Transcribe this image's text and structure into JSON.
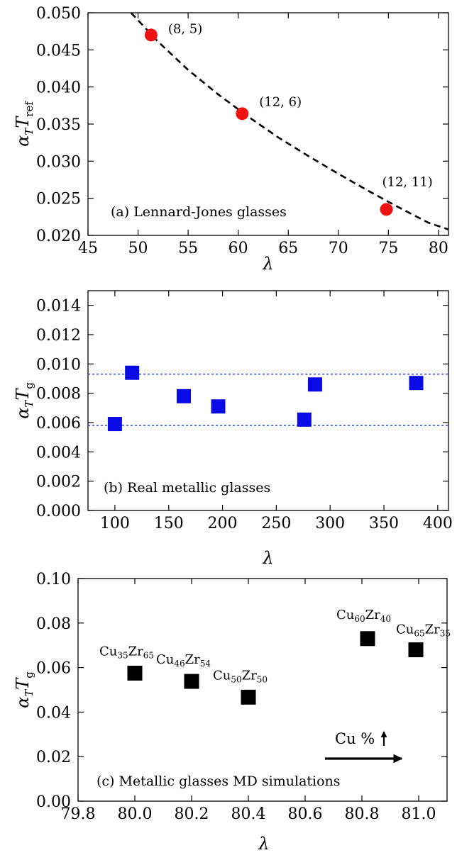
{
  "chart_data": [
    {
      "type": "scatter",
      "panel_label": "(a) Lennard-Jones glasses",
      "xlabel": "λ",
      "ylabel": "α_T T_ref",
      "xlim": [
        45,
        81
      ],
      "ylim": [
        0.02,
        0.05
      ],
      "xticks": [
        "45",
        "50",
        "55",
        "60",
        "65",
        "70",
        "75",
        "80"
      ],
      "yticks": [
        "0.020",
        "0.025",
        "0.030",
        "0.035",
        "0.040",
        "0.045",
        "0.050"
      ],
      "grid": false,
      "marker_color": "#ee1111",
      "points": [
        {
          "x": 51.3,
          "y": 0.047,
          "label": "(8, 5)"
        },
        {
          "x": 60.4,
          "y": 0.0364,
          "label": "(12, 6)"
        },
        {
          "x": 74.8,
          "y": 0.0235,
          "label": "(12, 11)"
        }
      ],
      "fit_curve": {
        "style": "dashed",
        "color": "#000000",
        "x": [
          49.3,
          52,
          55,
          58,
          61,
          64,
          67,
          70,
          73,
          76,
          79,
          81
        ],
        "y": [
          0.05,
          0.0461,
          0.0423,
          0.039,
          0.036,
          0.0332,
          0.0307,
          0.0283,
          0.026,
          0.0238,
          0.0217,
          0.0208
        ]
      }
    },
    {
      "type": "scatter",
      "panel_label": "(b) Real metallic glasses",
      "xlabel": "λ",
      "ylabel": "α_T T_g",
      "xlim": [
        75,
        410
      ],
      "ylim": [
        0.0,
        0.015
      ],
      "xticks": [
        "100",
        "150",
        "200",
        "250",
        "300",
        "350",
        "400"
      ],
      "yticks": [
        "0.000",
        "0.002",
        "0.004",
        "0.006",
        "0.008",
        "0.010",
        "0.012",
        "0.014"
      ],
      "grid": false,
      "marker_color": "#0a0ae6",
      "points": [
        {
          "x": 100,
          "y": 0.0059
        },
        {
          "x": 116,
          "y": 0.0094
        },
        {
          "x": 164,
          "y": 0.0078
        },
        {
          "x": 196,
          "y": 0.0071
        },
        {
          "x": 276,
          "y": 0.0062
        },
        {
          "x": 286,
          "y": 0.0086
        },
        {
          "x": 380,
          "y": 0.0087
        }
      ],
      "reference_lines": [
        {
          "y": 0.0093,
          "style": "dotted",
          "color": "#2e55e6"
        },
        {
          "y": 0.0058,
          "style": "dotted",
          "color": "#2e55e6"
        }
      ]
    },
    {
      "type": "scatter",
      "panel_label": "(c) Metallic glasses MD simulations",
      "xlabel": "λ",
      "ylabel": "α_T T_g",
      "xlim": [
        79.8,
        81.1
      ],
      "ylim": [
        0.0,
        0.1
      ],
      "xticks": [
        "79.8",
        "80.0",
        "80.2",
        "80.4",
        "80.6",
        "80.8",
        "81.0"
      ],
      "yticks": [
        "0.00",
        "0.02",
        "0.04",
        "0.06",
        "0.08",
        "0.10"
      ],
      "grid": false,
      "marker_color": "#000000",
      "points": [
        {
          "x": 80.0,
          "y": 0.0575,
          "label": [
            "Cu",
            "35",
            "Zr",
            "65"
          ]
        },
        {
          "x": 80.2,
          "y": 0.0538,
          "label": [
            "Cu",
            "46",
            "Zr",
            "54"
          ]
        },
        {
          "x": 80.4,
          "y": 0.0467,
          "label": [
            "Cu",
            "50",
            "Zr",
            "50"
          ]
        },
        {
          "x": 80.82,
          "y": 0.073,
          "label": [
            "Cu",
            "60",
            "Zr",
            "40"
          ]
        },
        {
          "x": 80.99,
          "y": 0.068,
          "label": [
            "Cu",
            "65",
            "Zr",
            "35"
          ]
        }
      ],
      "annotation": {
        "text": "Cu %"
      }
    }
  ]
}
